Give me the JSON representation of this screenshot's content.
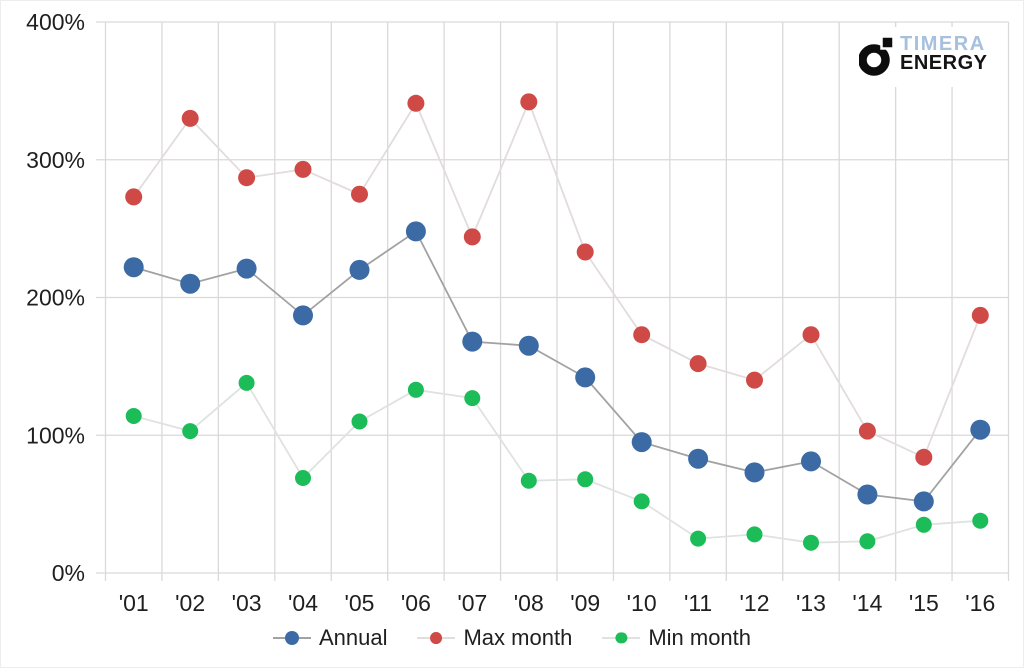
{
  "logo": {
    "brand": "TIMERA",
    "sub": "ENERGY",
    "brand_color": "#a6c0de",
    "sub_color": "#141414",
    "mark_color": "#0d0d0d"
  },
  "chart_data": {
    "type": "line",
    "title": "",
    "xlabel": "",
    "ylabel": "",
    "categories": [
      "'01",
      "'02",
      "'03",
      "'04",
      "'05",
      "'06",
      "'07",
      "'08",
      "'09",
      "'10",
      "'11",
      "'12",
      "'13",
      "'14",
      "'15",
      "'16"
    ],
    "series": [
      {
        "name": "Annual",
        "color": "#3b6aa5",
        "line_color": "#a2a2a2",
        "marker_radius": 10,
        "values": [
          222,
          210,
          221,
          187,
          220,
          248,
          168,
          165,
          142,
          95,
          83,
          73,
          81,
          57,
          52,
          104
        ]
      },
      {
        "name": "Max month",
        "color": "#cf4a46",
        "line_color": "#e2dcdc",
        "marker_radius": 8.5,
        "values": [
          273,
          330,
          287,
          293,
          275,
          341,
          244,
          342,
          233,
          173,
          152,
          140,
          173,
          103,
          84,
          187
        ]
      },
      {
        "name": "Min month",
        "color": "#1cbd58",
        "line_color": "#dfe3df",
        "marker_radius": 8,
        "values": [
          114,
          103,
          138,
          69,
          110,
          133,
          127,
          67,
          68,
          52,
          25,
          28,
          22,
          23,
          35,
          38
        ]
      }
    ],
    "ylim": [
      0,
      400
    ],
    "y_ticks": [
      {
        "value": 0,
        "label": "0%"
      },
      {
        "value": 100,
        "label": "100%"
      },
      {
        "value": 200,
        "label": "200%"
      },
      {
        "value": 300,
        "label": "300%"
      },
      {
        "value": 400,
        "label": "400%"
      }
    ],
    "grid": true,
    "gridline_color": "#d9d9d9",
    "legend_position": "bottom"
  }
}
